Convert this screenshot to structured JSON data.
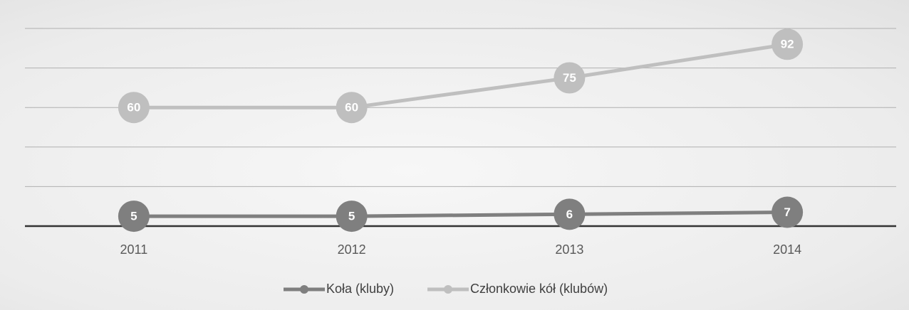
{
  "chart_data": {
    "type": "line",
    "categories": [
      "2011",
      "2012",
      "2013",
      "2014"
    ],
    "series": [
      {
        "name": "Koła (kluby)",
        "color": "#7f7f7f",
        "values": [
          5,
          5,
          6,
          7
        ]
      },
      {
        "name": "Członkowie kół (klubów)",
        "color": "#bfbfbf",
        "values": [
          60,
          60,
          75,
          92
        ]
      }
    ],
    "ylim": [
      0,
      100
    ],
    "yticks": [
      0,
      20,
      40,
      60,
      80,
      100
    ],
    "grid": true,
    "legend": "bottom"
  }
}
